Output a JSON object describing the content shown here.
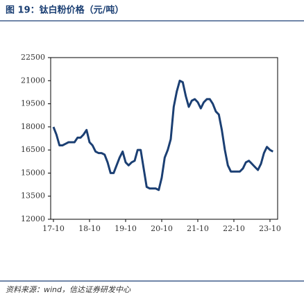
{
  "chart_data": {
    "type": "line",
    "title": "图 19：钛白粉价格（元/吨）",
    "source": "资料来源：wind，信达证券研发中心",
    "categories": [
      "17-10",
      null,
      null,
      null,
      null,
      null,
      null,
      null,
      null,
      null,
      null,
      null,
      "18-10",
      null,
      null,
      null,
      null,
      null,
      null,
      null,
      null,
      null,
      null,
      null,
      "19-10",
      null,
      null,
      null,
      null,
      null,
      null,
      null,
      null,
      null,
      null,
      null,
      "20-10",
      null,
      null,
      null,
      null,
      null,
      null,
      null,
      null,
      null,
      null,
      null,
      "21-10",
      null,
      null,
      null,
      null,
      null,
      null,
      null,
      null,
      null,
      null,
      null,
      "22-10",
      null,
      null,
      null,
      null,
      null,
      null,
      null,
      null,
      null,
      null,
      null,
      "23-10",
      null
    ],
    "series": [
      {
        "color": "#1b3f73",
        "values": [
          18000,
          17500,
          16800,
          16800,
          16900,
          17000,
          17000,
          17000,
          17300,
          17300,
          17500,
          17800,
          17000,
          16800,
          16400,
          16300,
          16300,
          16200,
          15700,
          15000,
          15000,
          15500,
          16000,
          16400,
          15700,
          15500,
          15700,
          15800,
          16500,
          16500,
          15300,
          14100,
          14000,
          14000,
          14000,
          13900,
          14700,
          16000,
          16500,
          17200,
          19300,
          20300,
          21000,
          20900,
          20000,
          19300,
          19700,
          19800,
          19600,
          19200,
          19600,
          19800,
          19800,
          19500,
          19000,
          18800,
          17800,
          16500,
          15500,
          15100,
          15100,
          15100,
          15100,
          15300,
          15700,
          15800,
          15600,
          15400,
          15200,
          15600,
          16300,
          16700,
          16500,
          16400
        ]
      }
    ],
    "ylim": [
      12000,
      22500
    ],
    "yticks": [
      12000,
      13500,
      15000,
      16500,
      18000,
      19500,
      21000,
      22500
    ]
  }
}
